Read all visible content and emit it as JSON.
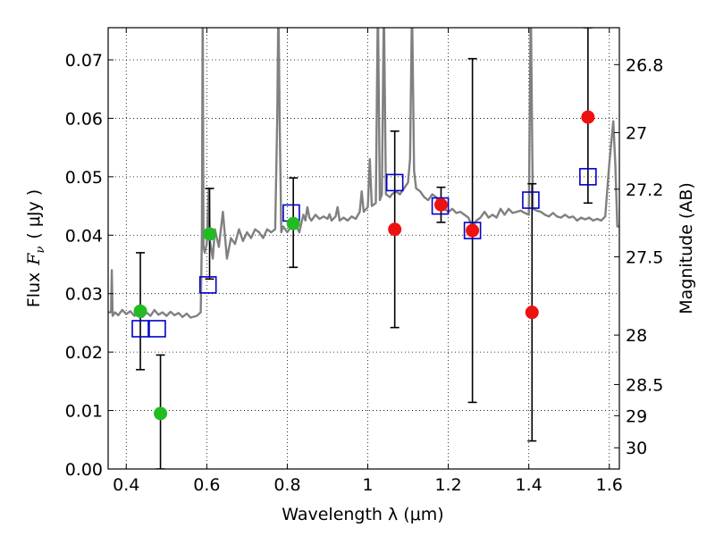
{
  "chart_data": {
    "type": "scatter",
    "xlabel": "Wavelength  λ (μm)",
    "ylabel_left_prefix": "Flux",
    "ylabel_left_symbol": "F",
    "ylabel_left_sub": "ν",
    "ylabel_left_unit": "( μJy )",
    "ylabel_right": "Magnitude (AB)",
    "xlim": [
      0.355,
      1.625
    ],
    "ylim": [
      0.0,
      0.0755
    ],
    "grid": true,
    "x_ticks": [
      "0.4",
      "0.6",
      "0.8",
      "1",
      "1.2",
      "1.4",
      "1.6"
    ],
    "y_ticks": [
      "0.00",
      "0.01",
      "0.02",
      "0.03",
      "0.04",
      "0.05",
      "0.06",
      "0.07"
    ],
    "mag_ticks": [
      "26.8",
      "27",
      "27.2",
      "27.5",
      "28",
      "28.5",
      "29",
      "30"
    ],
    "colors": {
      "model": "#808080",
      "green_points": "#22bb22",
      "red_points": "#ee1111",
      "open_squares": "#0000cc",
      "error_bars": "#000000"
    },
    "model_spectrum": [
      [
        0.356,
        0.0268
      ],
      [
        0.362,
        0.0268
      ],
      [
        0.364,
        0.034
      ],
      [
        0.366,
        0.0262
      ],
      [
        0.372,
        0.0268
      ],
      [
        0.38,
        0.0263
      ],
      [
        0.39,
        0.0272
      ],
      [
        0.4,
        0.0265
      ],
      [
        0.41,
        0.027
      ],
      [
        0.42,
        0.0262
      ],
      [
        0.43,
        0.0268
      ],
      [
        0.44,
        0.026
      ],
      [
        0.45,
        0.0268
      ],
      [
        0.46,
        0.0262
      ],
      [
        0.47,
        0.0272
      ],
      [
        0.48,
        0.0264
      ],
      [
        0.49,
        0.0268
      ],
      [
        0.5,
        0.0262
      ],
      [
        0.51,
        0.0269
      ],
      [
        0.52,
        0.0263
      ],
      [
        0.53,
        0.0267
      ],
      [
        0.54,
        0.026
      ],
      [
        0.55,
        0.0266
      ],
      [
        0.56,
        0.0259
      ],
      [
        0.575,
        0.0262
      ],
      [
        0.585,
        0.0268
      ],
      [
        0.588,
        0.04
      ],
      [
        0.59,
        0.08
      ],
      [
        0.592,
        0.038
      ],
      [
        0.595,
        0.037
      ],
      [
        0.6,
        0.0385
      ],
      [
        0.605,
        0.048
      ],
      [
        0.608,
        0.039
      ],
      [
        0.615,
        0.036
      ],
      [
        0.62,
        0.041
      ],
      [
        0.63,
        0.038
      ],
      [
        0.64,
        0.044
      ],
      [
        0.65,
        0.036
      ],
      [
        0.66,
        0.0395
      ],
      [
        0.67,
        0.0385
      ],
      [
        0.68,
        0.041
      ],
      [
        0.69,
        0.039
      ],
      [
        0.7,
        0.0405
      ],
      [
        0.71,
        0.0395
      ],
      [
        0.72,
        0.041
      ],
      [
        0.73,
        0.0405
      ],
      [
        0.74,
        0.0395
      ],
      [
        0.75,
        0.041
      ],
      [
        0.76,
        0.0405
      ],
      [
        0.77,
        0.041
      ],
      [
        0.775,
        0.06
      ],
      [
        0.778,
        0.08
      ],
      [
        0.781,
        0.06
      ],
      [
        0.785,
        0.0405
      ],
      [
        0.79,
        0.0415
      ],
      [
        0.8,
        0.0405
      ],
      [
        0.81,
        0.0415
      ],
      [
        0.82,
        0.042
      ],
      [
        0.83,
        0.0405
      ],
      [
        0.84,
        0.0435
      ],
      [
        0.845,
        0.0425
      ],
      [
        0.85,
        0.0448
      ],
      [
        0.855,
        0.043
      ],
      [
        0.86,
        0.0425
      ],
      [
        0.87,
        0.0435
      ],
      [
        0.88,
        0.0428
      ],
      [
        0.89,
        0.0432
      ],
      [
        0.9,
        0.0428
      ],
      [
        0.905,
        0.0436
      ],
      [
        0.91,
        0.0425
      ],
      [
        0.92,
        0.0432
      ],
      [
        0.925,
        0.0448
      ],
      [
        0.93,
        0.0425
      ],
      [
        0.94,
        0.043
      ],
      [
        0.95,
        0.0425
      ],
      [
        0.96,
        0.0432
      ],
      [
        0.97,
        0.0428
      ],
      [
        0.98,
        0.044
      ],
      [
        0.985,
        0.0475
      ],
      [
        0.99,
        0.044
      ],
      [
        1.0,
        0.0448
      ],
      [
        1.005,
        0.053
      ],
      [
        1.01,
        0.045
      ],
      [
        1.02,
        0.0455
      ],
      [
        1.025,
        0.08
      ],
      [
        1.03,
        0.046
      ],
      [
        1.035,
        0.047
      ],
      [
        1.04,
        0.08
      ],
      [
        1.045,
        0.047
      ],
      [
        1.055,
        0.0465
      ],
      [
        1.06,
        0.047
      ],
      [
        1.07,
        0.0475
      ],
      [
        1.08,
        0.047
      ],
      [
        1.09,
        0.048
      ],
      [
        1.1,
        0.049
      ],
      [
        1.105,
        0.053
      ],
      [
        1.11,
        0.08
      ],
      [
        1.115,
        0.051
      ],
      [
        1.12,
        0.048
      ],
      [
        1.13,
        0.0475
      ],
      [
        1.14,
        0.0465
      ],
      [
        1.15,
        0.046
      ],
      [
        1.16,
        0.047
      ],
      [
        1.17,
        0.0465
      ],
      [
        1.18,
        0.045
      ],
      [
        1.19,
        0.0445
      ],
      [
        1.2,
        0.044
      ],
      [
        1.21,
        0.0445
      ],
      [
        1.22,
        0.0438
      ],
      [
        1.23,
        0.044
      ],
      [
        1.24,
        0.0435
      ],
      [
        1.25,
        0.043
      ],
      [
        1.26,
        0.0415
      ],
      [
        1.27,
        0.0425
      ],
      [
        1.28,
        0.043
      ],
      [
        1.29,
        0.044
      ],
      [
        1.3,
        0.043
      ],
      [
        1.31,
        0.0435
      ],
      [
        1.32,
        0.043
      ],
      [
        1.33,
        0.0445
      ],
      [
        1.34,
        0.0435
      ],
      [
        1.35,
        0.0445
      ],
      [
        1.36,
        0.0438
      ],
      [
        1.37,
        0.044
      ],
      [
        1.38,
        0.0442
      ],
      [
        1.39,
        0.0438
      ],
      [
        1.4,
        0.0435
      ],
      [
        1.405,
        0.08
      ],
      [
        1.41,
        0.0445
      ],
      [
        1.42,
        0.0442
      ],
      [
        1.43,
        0.044
      ],
      [
        1.44,
        0.0435
      ],
      [
        1.45,
        0.0432
      ],
      [
        1.46,
        0.0438
      ],
      [
        1.47,
        0.0432
      ],
      [
        1.48,
        0.043
      ],
      [
        1.49,
        0.0435
      ],
      [
        1.5,
        0.043
      ],
      [
        1.51,
        0.0432
      ],
      [
        1.52,
        0.0425
      ],
      [
        1.53,
        0.043
      ],
      [
        1.54,
        0.0427
      ],
      [
        1.55,
        0.043
      ],
      [
        1.56,
        0.0425
      ],
      [
        1.57,
        0.0428
      ],
      [
        1.58,
        0.0425
      ],
      [
        1.59,
        0.0432
      ],
      [
        1.6,
        0.0522
      ],
      [
        1.61,
        0.0595
      ],
      [
        1.615,
        0.052
      ],
      [
        1.62,
        0.0415
      ],
      [
        1.625,
        0.0415
      ]
    ],
    "green_points": [
      {
        "x": 0.435,
        "y": 0.027,
        "lo": 0.017,
        "hi": 0.037
      },
      {
        "x": 0.485,
        "y": 0.0095,
        "lo": 0.0,
        "hi": 0.0195
      },
      {
        "x": 0.607,
        "y": 0.0402,
        "lo": 0.0325,
        "hi": 0.048
      },
      {
        "x": 0.815,
        "y": 0.042,
        "lo": 0.0345,
        "hi": 0.0498
      }
    ],
    "red_points": [
      {
        "x": 1.067,
        "y": 0.041,
        "lo": 0.0242,
        "hi": 0.0578
      },
      {
        "x": 1.182,
        "y": 0.0452,
        "lo": 0.0422,
        "hi": 0.0482
      },
      {
        "x": 1.26,
        "y": 0.0408,
        "lo": 0.0114,
        "hi": 0.0702
      },
      {
        "x": 1.408,
        "y": 0.0268,
        "lo": 0.0048,
        "hi": 0.0488
      },
      {
        "x": 1.547,
        "y": 0.0602,
        "lo": 0.0455,
        "hi": 0.0755
      }
    ],
    "open_squares": [
      {
        "x": 0.435,
        "y": 0.024
      },
      {
        "x": 0.477,
        "y": 0.024
      },
      {
        "x": 0.603,
        "y": 0.0315
      },
      {
        "x": 0.81,
        "y": 0.0438
      },
      {
        "x": 1.067,
        "y": 0.049
      },
      {
        "x": 1.18,
        "y": 0.045
      },
      {
        "x": 1.26,
        "y": 0.0408
      },
      {
        "x": 1.405,
        "y": 0.046
      },
      {
        "x": 1.547,
        "y": 0.05
      }
    ]
  }
}
